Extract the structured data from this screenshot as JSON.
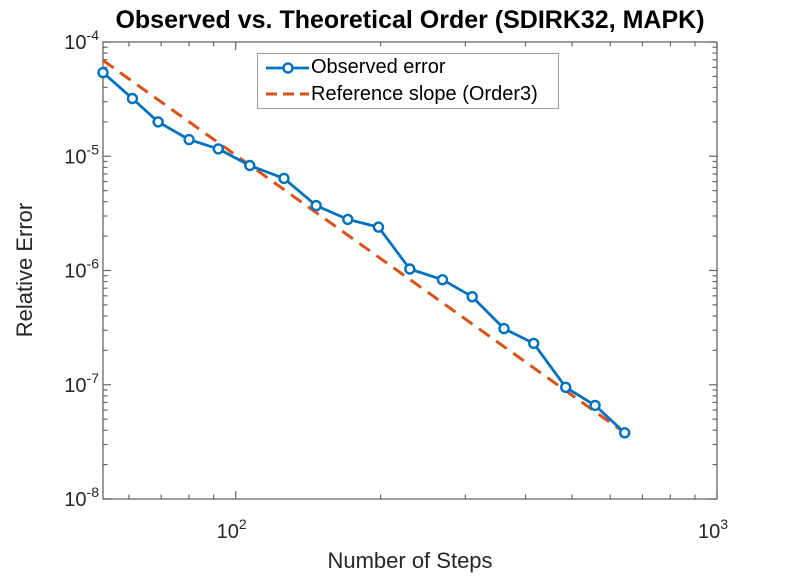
{
  "figure": {
    "title": "Observed vs. Theoretical Order (SDIRK32, MAPK)",
    "xlabel": "Number of Steps",
    "ylabel": "Relative Error"
  },
  "legend": {
    "entries": [
      {
        "label": "Observed error",
        "color": "#0072BD",
        "line": "solid",
        "marker": "circle"
      },
      {
        "label": "Reference slope (Order3)",
        "color": "#D95319",
        "line": "dashed",
        "marker": "none"
      }
    ]
  },
  "colors": {
    "observed": "#0072BD",
    "reference": "#D95319",
    "axis": "#666666",
    "tick_text": "#262626",
    "title_text": "#000000",
    "background": "#ffffff",
    "legend_border": "#999999"
  },
  "chart_data": {
    "type": "line",
    "title": "Observed vs. Theoretical Order (SDIRK32, MAPK)",
    "xlabel": "Number of Steps",
    "ylabel": "Relative Error",
    "x_scale": "log",
    "y_scale": "log",
    "xlim": [
      53,
      1000
    ],
    "ylim": [
      1e-08,
      0.0001
    ],
    "grid": false,
    "legend_position": "north",
    "x_ticks": [
      {
        "value": 100,
        "base": "10",
        "exponent": "2"
      },
      {
        "value": 1000,
        "base": "10",
        "exponent": "3"
      }
    ],
    "y_ticks": [
      {
        "value": 0.0001,
        "base": "10",
        "exponent": "-4"
      },
      {
        "value": 1e-05,
        "base": "10",
        "exponent": "-5"
      },
      {
        "value": 1e-06,
        "base": "10",
        "exponent": "-6"
      },
      {
        "value": 1e-07,
        "base": "10",
        "exponent": "-7"
      },
      {
        "value": 1e-08,
        "base": "10",
        "exponent": "-8"
      }
    ],
    "x_minor_ticks": [
      60,
      70,
      80,
      90,
      200,
      300,
      400,
      500,
      600,
      700,
      800,
      900
    ],
    "series": [
      {
        "name": "Observed error",
        "color": "#0072BD",
        "line": "solid",
        "marker": "circle",
        "x": [
          53,
          61,
          69,
          80,
          92,
          107,
          126,
          147,
          171,
          198,
          230,
          269,
          310,
          361,
          416,
          485,
          558,
          643
        ],
        "y": [
          5.4e-05,
          3.2e-05,
          2e-05,
          1.4e-05,
          1.16e-05,
          8.3e-06,
          6.4e-06,
          3.7e-06,
          2.8e-06,
          2.4e-06,
          1.03e-06,
          8.3e-07,
          5.9e-07,
          3.1e-07,
          2.3e-07,
          9.5e-08,
          6.6e-08,
          3.8e-08
        ]
      },
      {
        "name": "Reference slope (Order3)",
        "color": "#D95319",
        "line": "dashed",
        "marker": "none",
        "x": [
          53,
          643
        ],
        "y": [
          6.9e-05,
          3.8e-08
        ]
      }
    ]
  }
}
